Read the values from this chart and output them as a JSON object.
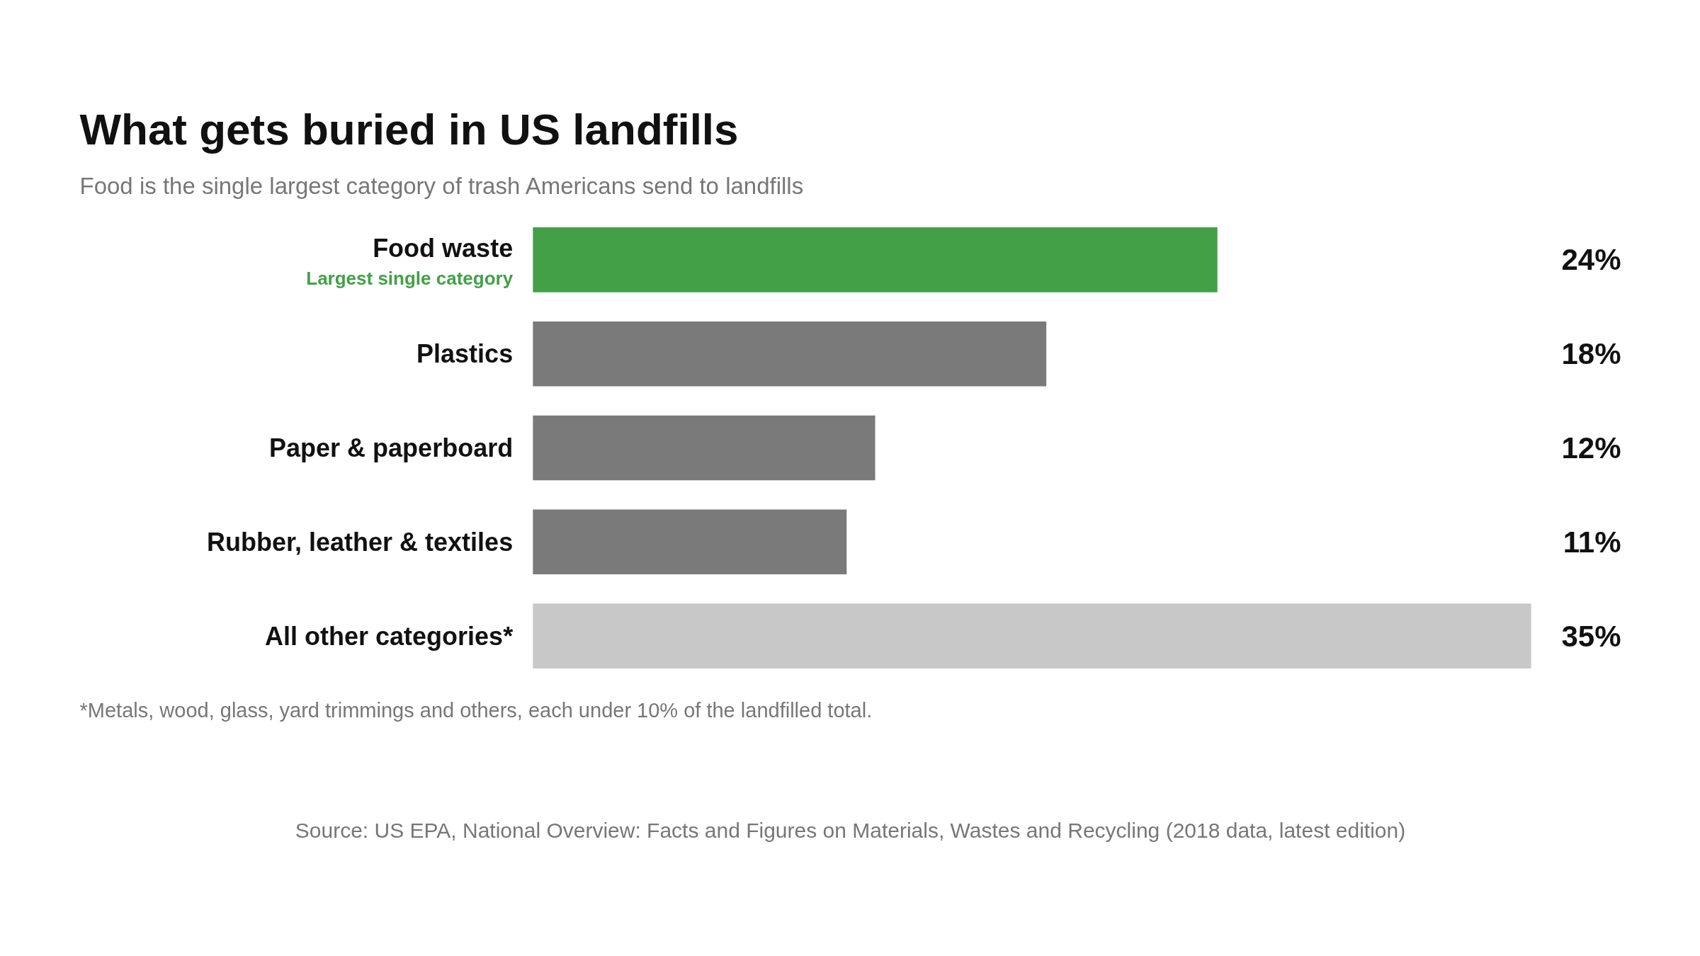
{
  "chart_data": {
    "type": "bar",
    "orientation": "horizontal",
    "title": "What gets buried in US landfills",
    "subtitle": "Food is the single largest category of trash Americans send to landfills",
    "categories": [
      "Food waste",
      "Plastics",
      "Paper & paperboard",
      "Rubber, leather & textiles",
      "All other categories*"
    ],
    "values": [
      24,
      18,
      12,
      11,
      35
    ],
    "colors": [
      "#43a047",
      "#7a7a7a",
      "#7a7a7a",
      "#7a7a7a",
      "#c8c8c8"
    ],
    "value_labels": [
      "24%",
      "18%",
      "12%",
      "11%",
      "35%"
    ],
    "annotations": [
      "Largest single category",
      "*Metals, wood, glass, yard trimmings and others, each under 10% of the landfilled total.",
      "Source: US EPA, National Overview: Facts and Figures on Materials, Wastes and Recycling (2018 data, latest edition)"
    ]
  }
}
